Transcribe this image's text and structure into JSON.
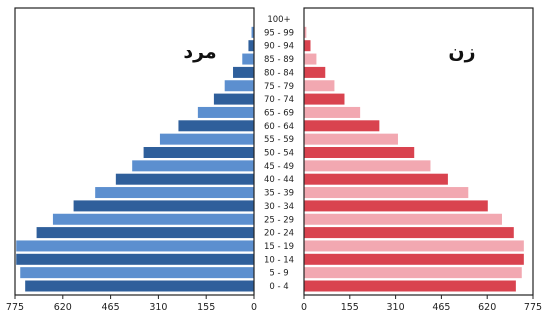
{
  "chart_data": {
    "type": "bar",
    "orientation": "horizontal-population-pyramid",
    "categories": [
      "0 - 4",
      "5 - 9",
      "10 - 14",
      "15 - 19",
      "20 - 24",
      "25 - 29",
      "30 - 34",
      "35 - 39",
      "40 - 44",
      "45 - 49",
      "50 - 54",
      "55 - 59",
      "60 - 64",
      "65 - 69",
      "70 - 74",
      "75 - 79",
      "80 - 84",
      "85 - 89",
      "90 - 94",
      "95 - 99",
      "100+"
    ],
    "series": [
      {
        "name": "مرد",
        "side": "left",
        "values": [
          742,
          758,
          771,
          771,
          705,
          652,
          585,
          515,
          448,
          395,
          358,
          305,
          245,
          182,
          130,
          95,
          68,
          38,
          18,
          8,
          0
        ],
        "colors": [
          "#2f5f9b",
          "#5c8fcf"
        ]
      },
      {
        "name": "زن",
        "side": "right",
        "values": [
          717,
          737,
          744,
          744,
          710,
          670,
          622,
          556,
          487,
          428,
          373,
          318,
          255,
          190,
          137,
          103,
          72,
          42,
          22,
          8,
          0
        ],
        "colors": [
          "#d9434f",
          "#f2a8b1"
        ]
      }
    ],
    "xticks": [
      "775",
      "620",
      "465",
      "310",
      "155",
      "0"
    ],
    "xticks_right": [
      "0",
      "155",
      "310",
      "465",
      "620",
      "775"
    ],
    "xlim": [
      0,
      775
    ],
    "xlabel": "",
    "ylabel": "",
    "title": "",
    "grid": false
  }
}
